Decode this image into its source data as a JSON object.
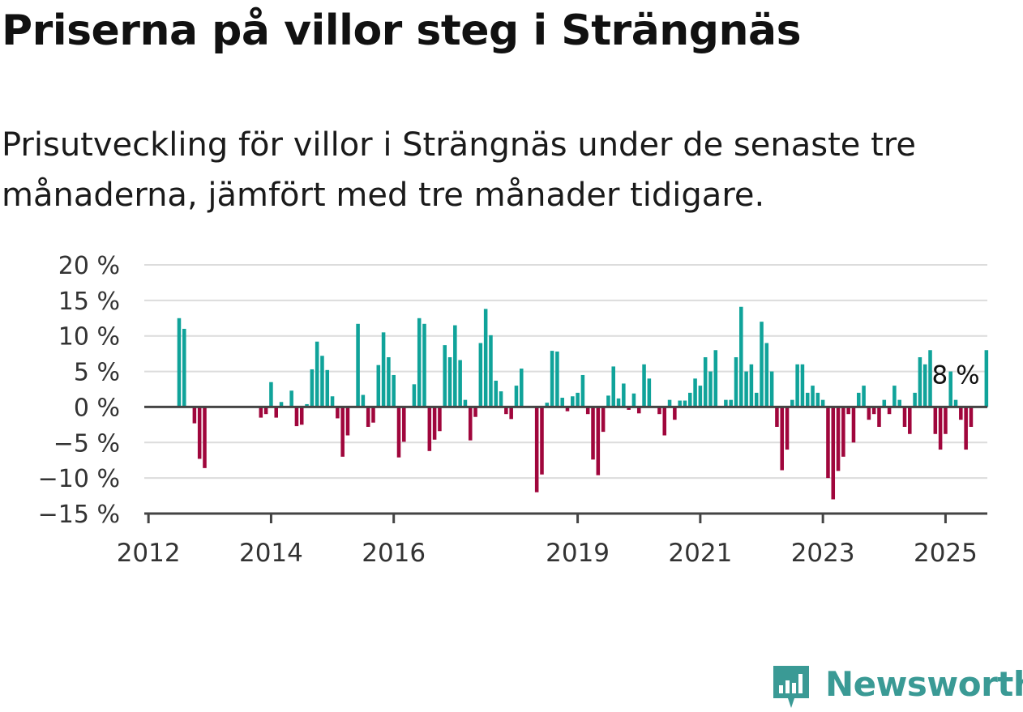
{
  "page": {
    "title": "Priserna på villor steg i Strängnäs",
    "subtitle": "Prisutveckling för villor i Strängnäs under de senaste tre månaderna, jämfört med tre månader tidigare."
  },
  "brand": {
    "name": "Newsworthy",
    "icon": "newsworthy-logo-icon",
    "color": "#3a9a95"
  },
  "chart_data": {
    "type": "bar",
    "unit": "%",
    "y_axis": {
      "ylim": [
        -15,
        20
      ],
      "ticks": [
        20,
        15,
        10,
        5,
        0,
        -5,
        -10,
        -15
      ],
      "tick_labels": [
        "20 %",
        "15 %",
        "10 %",
        "5 %",
        "0 %",
        "−5 %",
        "−10 %",
        "−15 %"
      ],
      "grid": true
    },
    "x_axis": {
      "start": "2012-01",
      "end": "2025-09",
      "ticks": [
        "2012-01",
        "2014-01",
        "2016-01",
        "2019-01",
        "2021-01",
        "2023-01",
        "2025-01"
      ],
      "tick_labels": [
        "2012",
        "2014",
        "2016",
        "2019",
        "2021",
        "2023",
        "2025"
      ]
    },
    "colors": {
      "positive": "#10a39a",
      "negative": "#a0063c"
    },
    "annotation": {
      "text": "8 %",
      "month": "2025-03"
    },
    "series": [
      {
        "start": "2012-01",
        "values": [
          null,
          null,
          null,
          null,
          null,
          null,
          12.5,
          11.0,
          null,
          -2.3,
          -7.3,
          -8.6,
          null,
          null,
          null,
          null,
          null,
          null,
          null,
          null,
          null,
          null,
          -1.5,
          -1.0,
          3.5,
          -1.5,
          0.7,
          null,
          2.3,
          -2.7,
          -2.5,
          0.4,
          5.3,
          9.2,
          7.2,
          5.2,
          1.5,
          -1.6,
          -7.0,
          -4.0,
          null,
          11.7,
          1.7,
          -2.8,
          -2.2,
          5.9,
          10.5,
          7.0,
          4.5,
          -7.1,
          -4.9,
          null,
          3.2,
          12.5,
          11.7,
          -6.2,
          -4.6,
          -3.4,
          8.7,
          7.0,
          11.5,
          6.6,
          1.0,
          -4.7,
          -1.4,
          9.0,
          13.8,
          10.1,
          3.7,
          2.2,
          -1.0,
          -1.7,
          3.0,
          5.4,
          null,
          null,
          -12.0,
          -9.5,
          0.6,
          7.9,
          7.8,
          1.3,
          -0.6,
          1.5,
          2.0,
          4.5,
          -1.0,
          -7.4,
          -9.6,
          -3.5,
          1.6,
          5.7,
          1.2,
          3.3,
          -0.4,
          1.9,
          -0.9,
          6.0,
          4.0,
          null,
          -1.0,
          -4.0,
          1.0,
          -1.8,
          0.9,
          0.9,
          2.0,
          4.0,
          3.0,
          7.0,
          5.0,
          8.0,
          null,
          1.0,
          1.0,
          7.0,
          14.1,
          5.0,
          6.0,
          2.0,
          12.0,
          9.0,
          5.0,
          -2.8,
          -8.9,
          -6.0,
          1.0,
          6.0,
          6.0,
          2.0,
          3.0,
          2.0,
          1.0,
          -10.0,
          -13.0,
          -9.0,
          -7.0,
          -1.0,
          -5.0,
          2.0,
          3.0,
          -1.8,
          -1.0,
          -2.8,
          1.0,
          -1.0,
          3.0,
          1.0,
          -2.8,
          -3.8,
          2.0,
          7.0,
          6.0,
          8.0,
          -3.8,
          -6.0,
          -3.8,
          5.0,
          1.0,
          -1.8,
          -6.0,
          -2.8,
          null,
          null,
          8.0,
          null,
          null,
          null,
          null,
          null,
          null,
          null,
          null,
          null
        ]
      }
    ]
  }
}
